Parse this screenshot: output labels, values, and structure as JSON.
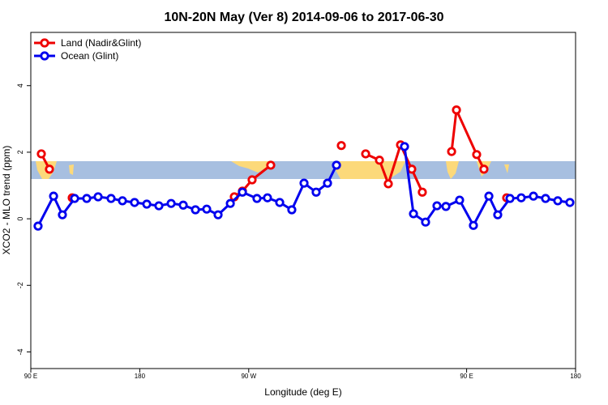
{
  "chart_data": {
    "type": "line",
    "title": "10N-20N May (Ver 8)   2014-09-06 to 2017-06-30",
    "x_label": "Longitude (deg E)",
    "y_label": "XCO2 - MLO trend (ppm)",
    "xlim": [
      90,
      540
    ],
    "xticks": [
      {
        "value": 90,
        "label": "90 E"
      },
      180,
      {
        "value": 270,
        "label": "90 W"
      },
      {
        "value": 450,
        "label": "90 E"
      },
      {
        "value": 540,
        "label": "180"
      }
    ],
    "ylim": [
      -4.5,
      5.6
    ],
    "yticks": [
      -4,
      -2,
      0,
      2,
      4
    ],
    "legend": "top-left",
    "series": [
      {
        "name": "Land (Nadir&Glint)",
        "color": "#ee0000",
        "x": [
          98.7,
          105.4,
          null,
          124.2,
          null,
          258.1,
          264.8,
          272.8,
          288.2,
          null,
          346.5,
          null,
          366.6,
          378.0,
          385.3,
          395.4,
          404.7,
          413.4,
          null,
          437.6,
          441.6,
          458.3,
          464.3,
          null,
          483.1
        ],
        "values": [
          1.95,
          1.49,
          null,
          0.63,
          null,
          0.66,
          0.83,
          1.17,
          1.61,
          null,
          2.2,
          null,
          1.95,
          1.76,
          1.05,
          2.22,
          1.49,
          0.8,
          null,
          2.02,
          3.27,
          1.93,
          1.49,
          null,
          0.63
        ]
      },
      {
        "name": "Ocean (Glint)",
        "color": "#0000ee",
        "x": [
          96.0,
          108.8,
          116.1,
          126.2,
          136.2,
          145.6,
          156.3,
          165.7,
          175.7,
          185.8,
          195.8,
          205.9,
          215.9,
          226.0,
          235.3,
          244.7,
          254.8,
          264.8,
          276.8,
          285.5,
          295.6,
          305.6,
          315.7,
          325.7,
          335.1,
          342.5,
          null,
          398.7,
          406.1,
          416.1,
          425.5,
          432.9,
          444.2,
          455.6,
          468.4,
          475.7,
          485.8,
          495.1,
          505.2,
          515.2,
          525.3,
          535.3
        ],
        "values": [
          -0.22,
          0.68,
          0.12,
          0.61,
          0.61,
          0.66,
          0.61,
          0.54,
          0.49,
          0.44,
          0.39,
          0.46,
          0.41,
          0.27,
          0.29,
          0.12,
          0.46,
          0.8,
          0.61,
          0.63,
          0.49,
          0.27,
          1.07,
          0.8,
          1.07,
          1.61,
          null,
          2.17,
          0.15,
          -0.1,
          0.39,
          0.37,
          0.56,
          -0.2,
          0.68,
          0.12,
          0.61,
          0.63,
          0.68,
          0.61,
          0.54,
          0.49
        ]
      }
    ]
  }
}
